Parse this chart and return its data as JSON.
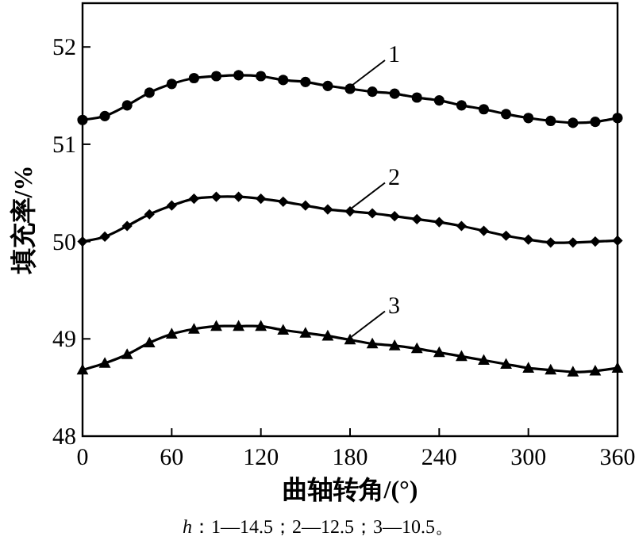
{
  "chart_data": {
    "type": "line",
    "xlabel": "曲轴转角/(°)",
    "ylabel": "填充率/%",
    "annotations": [
      "*h*：1—14.5；2—12.5；3—10.5。"
    ],
    "x": [
      0,
      15,
      30,
      45,
      60,
      75,
      90,
      105,
      120,
      135,
      150,
      165,
      180,
      195,
      210,
      225,
      240,
      255,
      270,
      285,
      300,
      315,
      330,
      345,
      360
    ],
    "series": [
      {
        "name": "1",
        "color": "#000000",
        "marker": "circle",
        "values": [
          51.25,
          51.29,
          51.4,
          51.53,
          51.62,
          51.68,
          51.7,
          51.71,
          51.7,
          51.66,
          51.64,
          51.6,
          51.57,
          51.54,
          51.52,
          51.48,
          51.45,
          51.4,
          51.36,
          51.31,
          51.27,
          51.24,
          51.22,
          51.23,
          51.27
        ]
      },
      {
        "name": "2",
        "color": "#000000",
        "marker": "diamond",
        "values": [
          50.0,
          50.05,
          50.16,
          50.28,
          50.37,
          50.44,
          50.46,
          50.46,
          50.44,
          50.41,
          50.37,
          50.33,
          50.31,
          50.29,
          50.26,
          50.23,
          50.2,
          50.16,
          50.11,
          50.06,
          50.02,
          49.99,
          49.99,
          50.0,
          50.01
        ]
      },
      {
        "name": "3",
        "color": "#000000",
        "marker": "triangle",
        "values": [
          48.68,
          48.75,
          48.84,
          48.96,
          49.05,
          49.1,
          49.13,
          49.13,
          49.13,
          49.09,
          49.06,
          49.03,
          48.99,
          48.95,
          48.93,
          48.9,
          48.86,
          48.82,
          48.78,
          48.74,
          48.7,
          48.68,
          48.66,
          48.67,
          48.7
        ]
      }
    ],
    "xlim": [
      0,
      360
    ],
    "ylim": [
      48,
      52.45
    ],
    "xticks": [
      0,
      60,
      120,
      180,
      240,
      300,
      360
    ],
    "yticks": [
      48,
      49,
      50,
      51,
      52
    ],
    "grid": false,
    "line_style": "solid"
  }
}
